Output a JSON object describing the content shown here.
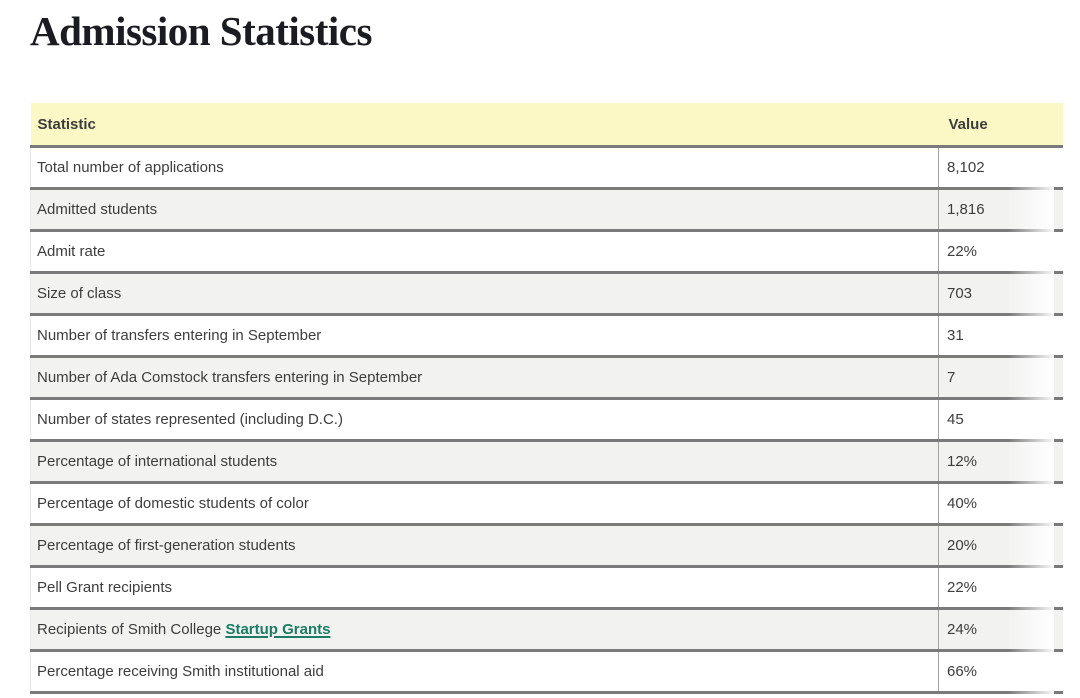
{
  "page_title": "Admission Statistics",
  "table": {
    "headers": {
      "statistic": "Statistic",
      "value": "Value"
    },
    "rows": [
      {
        "statistic": "Total number of applications",
        "value": "8,102"
      },
      {
        "statistic": "Admitted students",
        "value": "1,816"
      },
      {
        "statistic": "Admit rate",
        "value": "22%"
      },
      {
        "statistic": "Size of class",
        "value": "703"
      },
      {
        "statistic": "Number of transfers entering in September",
        "value": "31"
      },
      {
        "statistic": "Number of Ada Comstock transfers entering in September",
        "value": "7"
      },
      {
        "statistic": "Number of states represented (including D.C.)",
        "value": "45"
      },
      {
        "statistic": "Percentage of international students",
        "value": "12%"
      },
      {
        "statistic": "Percentage of domestic students of color",
        "value": "40%"
      },
      {
        "statistic": "Percentage of first-generation students",
        "value": "20%"
      },
      {
        "statistic": "Pell Grant recipients",
        "value": "22%"
      },
      {
        "statistic": "Recipients of Smith College",
        "link_text": "Startup Grants",
        "value": "24%"
      },
      {
        "statistic": "Percentage receiving Smith institutional aid",
        "value": "66%"
      }
    ]
  },
  "colors": {
    "page_bg": "#ffffff",
    "title_text": "#1b1b22",
    "header_bg": "#fbf8c6",
    "alt_row_bg": "#f2f2f1",
    "border": "#7a7a7a",
    "divider": "#a3a3a3",
    "text": "#3d3d3d",
    "link": "#1c7c63"
  }
}
